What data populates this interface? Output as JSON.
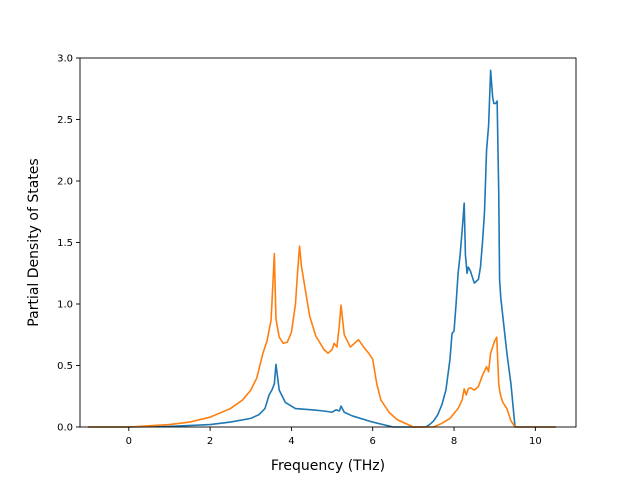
{
  "chart_data": {
    "type": "line",
    "title": "",
    "xlabel": "Frequency (THz)",
    "ylabel": "Partial Density of States",
    "xlim": [
      -1.2,
      11.0
    ],
    "ylim": [
      0.0,
      3.0
    ],
    "xticks": [
      0,
      2,
      4,
      6,
      8,
      10
    ],
    "xtick_labels": [
      "0",
      "2",
      "4",
      "6",
      "8",
      "10"
    ],
    "yticks": [
      0.0,
      0.5,
      1.0,
      1.5,
      2.0,
      2.5,
      3.0
    ],
    "ytick_labels": [
      "0.0",
      "0.5",
      "1.0",
      "1.5",
      "2.0",
      "2.5",
      "3.0"
    ],
    "grid": false,
    "legend": "none",
    "series": [
      {
        "color": "#1f77b4",
        "x": [
          -1.0,
          0.0,
          1.0,
          2.0,
          2.5,
          3.0,
          3.2,
          3.35,
          3.45,
          3.52,
          3.58,
          3.62,
          3.7,
          3.85,
          4.1,
          4.5,
          4.8,
          5.0,
          5.1,
          5.18,
          5.22,
          5.3,
          5.5,
          6.0,
          6.5,
          7.0,
          7.3,
          7.4,
          7.5,
          7.6,
          7.7,
          7.8,
          7.9,
          7.95,
          8.0,
          8.05,
          8.1,
          8.15,
          8.2,
          8.25,
          8.28,
          8.32,
          8.35,
          8.4,
          8.45,
          8.5,
          8.6,
          8.65,
          8.7,
          8.75,
          8.8,
          8.85,
          8.9,
          8.95,
          8.98,
          9.02,
          9.06,
          9.1,
          9.12,
          9.15,
          9.2,
          9.25,
          9.3,
          9.4,
          9.5,
          9.6,
          9.65,
          9.8,
          10.0,
          10.5
        ],
        "values": [
          0.0,
          0.0,
          0.005,
          0.02,
          0.04,
          0.07,
          0.1,
          0.15,
          0.26,
          0.3,
          0.35,
          0.51,
          0.3,
          0.2,
          0.15,
          0.14,
          0.13,
          0.12,
          0.14,
          0.13,
          0.17,
          0.12,
          0.09,
          0.04,
          0.0,
          0.0,
          0.0,
          0.02,
          0.05,
          0.1,
          0.18,
          0.3,
          0.55,
          0.76,
          0.78,
          1.0,
          1.25,
          1.4,
          1.6,
          1.82,
          1.4,
          1.25,
          1.3,
          1.27,
          1.22,
          1.17,
          1.2,
          1.3,
          1.5,
          1.75,
          2.25,
          2.45,
          2.9,
          2.68,
          2.63,
          2.63,
          2.65,
          1.9,
          1.2,
          1.05,
          0.9,
          0.75,
          0.6,
          0.35,
          0.0,
          0.0,
          0.0,
          0.0,
          0.0,
          0.0
        ]
      },
      {
        "color": "#ff7f0e",
        "x": [
          -1.0,
          0.0,
          0.5,
          1.0,
          1.5,
          2.0,
          2.5,
          2.8,
          3.0,
          3.15,
          3.3,
          3.4,
          3.5,
          3.55,
          3.58,
          3.62,
          3.7,
          3.8,
          3.9,
          4.0,
          4.1,
          4.15,
          4.2,
          4.25,
          4.3,
          4.35,
          4.45,
          4.6,
          4.8,
          4.9,
          5.0,
          5.05,
          5.12,
          5.18,
          5.22,
          5.3,
          5.45,
          5.55,
          5.65,
          5.8,
          5.9,
          6.0,
          6.1,
          6.2,
          6.4,
          6.6,
          7.0,
          7.3,
          7.5,
          7.7,
          7.9,
          8.1,
          8.2,
          8.25,
          8.3,
          8.35,
          8.4,
          8.5,
          8.6,
          8.7,
          8.8,
          8.85,
          8.9,
          8.95,
          9.0,
          9.05,
          9.1,
          9.12,
          9.15,
          9.2,
          9.3,
          9.4,
          9.5,
          9.6,
          9.65,
          9.8,
          10.0,
          10.5
        ],
        "values": [
          0.0,
          0.0,
          0.01,
          0.02,
          0.04,
          0.08,
          0.15,
          0.22,
          0.3,
          0.4,
          0.6,
          0.7,
          0.87,
          1.2,
          1.41,
          0.88,
          0.73,
          0.68,
          0.69,
          0.77,
          1.0,
          1.25,
          1.47,
          1.3,
          1.2,
          1.1,
          0.9,
          0.74,
          0.63,
          0.6,
          0.63,
          0.68,
          0.65,
          0.83,
          0.99,
          0.75,
          0.65,
          0.68,
          0.71,
          0.64,
          0.6,
          0.55,
          0.35,
          0.22,
          0.12,
          0.06,
          0.0,
          0.0,
          0.0,
          0.03,
          0.07,
          0.15,
          0.22,
          0.31,
          0.26,
          0.31,
          0.32,
          0.3,
          0.33,
          0.42,
          0.49,
          0.45,
          0.6,
          0.65,
          0.7,
          0.73,
          0.35,
          0.3,
          0.25,
          0.2,
          0.15,
          0.05,
          0.0,
          0.0,
          0.0,
          0.0,
          0.0,
          0.0
        ]
      }
    ]
  }
}
